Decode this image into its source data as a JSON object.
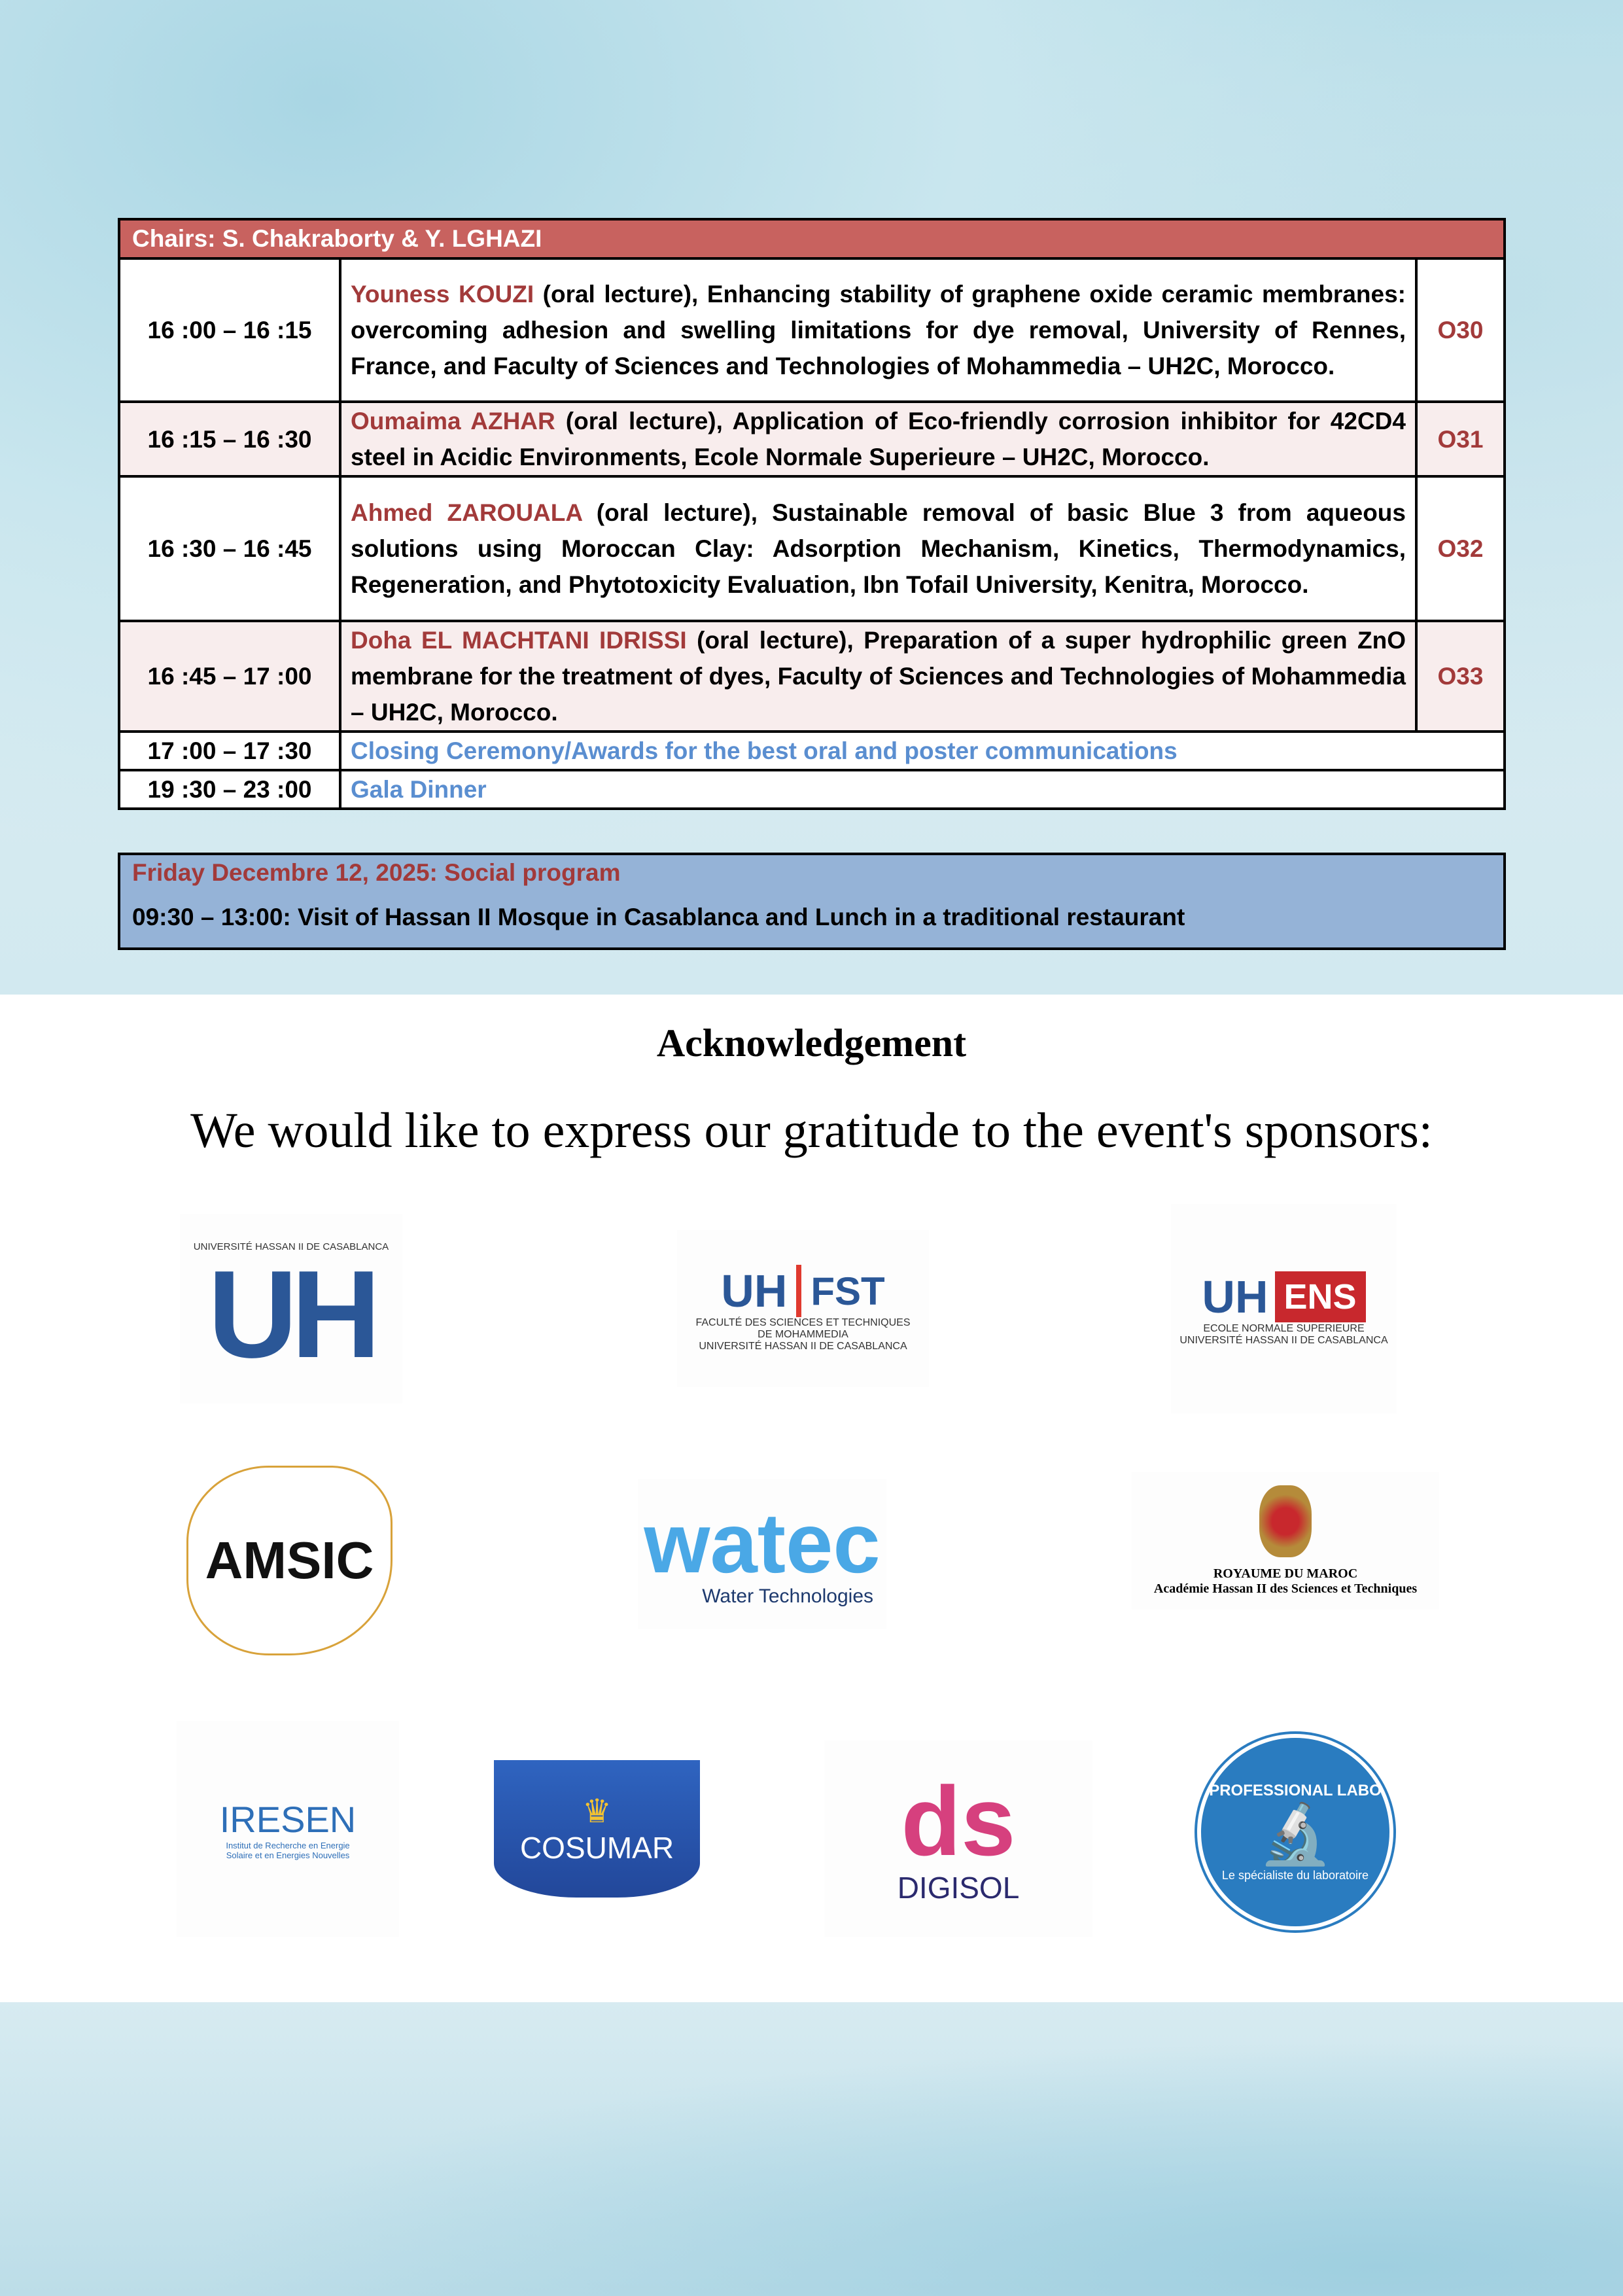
{
  "chairs": "Chairs: S. Chakraborty & Y. LGHAZI",
  "rows": [
    {
      "time": "16 :00 – 16 :15",
      "name": "Youness KOUZI",
      "text": " (oral lecture), Enhancing stability of graphene oxide ceramic membranes: overcoming adhesion and swelling limitations for dye removal, University of Rennes, France, and Faculty of Sciences and Technologies of Mohammedia – UH2C, Morocco.",
      "code": "O30"
    },
    {
      "time": "16 :15 – 16 :30",
      "name": "Oumaima AZHAR",
      "text": " (oral lecture), Application of Eco-friendly corrosion inhibitor for 42CD4 steel in Acidic Environments, Ecole Normale Superieure – UH2C, Morocco.",
      "code": "O31"
    },
    {
      "time": "16 :30 – 16 :45",
      "name": "Ahmed ZAROUALA",
      "text": " (oral lecture), Sustainable removal of basic Blue 3 from aqueous solutions using Moroccan Clay: Adsorption Mechanism, Kinetics, Thermodynamics, Regeneration, and Phytotoxicity Evaluation, Ibn Tofail University, Kenitra, Morocco.",
      "code": "O32"
    },
    {
      "time": "16 :45 – 17 :00",
      "name": "Doha EL MACHTANI IDRISSI",
      "text": " (oral lecture), Preparation of a super hydrophilic green ZnO membrane for the treatment of dyes, Faculty of Sciences and Technologies of Mohammedia – UH2C, Morocco.",
      "code": "O33"
    },
    {
      "time": "17 :00 – 17 :30",
      "event": "Closing Ceremony/Awards for the best oral and poster communications"
    },
    {
      "time": "19 :30 – 23 :00",
      "event": "Gala Dinner"
    }
  ],
  "social": {
    "title": "Friday Decembre 12, 2025:  Social program",
    "content": "09:30 – 13:00: Visit of Hassan II Mosque in Casablanca and Lunch in a traditional restaurant"
  },
  "ack_title": "Acknowledgement",
  "gratitude": "We would like to express our gratitude to the event's sponsors:",
  "logos": {
    "uh2c": {
      "line": "UNIVERSITÉ HASSAN II DE CASABLANCA",
      "mark": "UH"
    },
    "fst": {
      "mark": "FST",
      "l1": "FACULTÉ DES SCIENCES ET TECHNIQUES",
      "l2": "DE MOHAMMEDIA",
      "l3": "UNIVERSITÉ HASSAN II DE CASABLANCA"
    },
    "ens": {
      "mark": "ENS",
      "l1": "ECOLE NORMALE SUPERIEURE",
      "l2": "UNIVERSITÉ HASSAN II DE CASABLANCA"
    },
    "amsic": {
      "mark": "AMSIC"
    },
    "watec": {
      "mark": "watec",
      "sub": "Water Technologies"
    },
    "royaume": {
      "l1": "ROYAUME DU MAROC",
      "l2": "Académie Hassan II des Sciences et Techniques"
    },
    "iresen": {
      "mark": "IRESEN",
      "sub": "Institut de Recherche en Energie Solaire et en Energies Nouvelles"
    },
    "cosumar": {
      "mark": "COSUMAR"
    },
    "digisol": {
      "mark": "ds",
      "sub": "DIGISOL"
    },
    "prolabo": {
      "top": "PROFESSIONAL LABO",
      "bottom": "Le spécialiste du laboratoire"
    }
  }
}
